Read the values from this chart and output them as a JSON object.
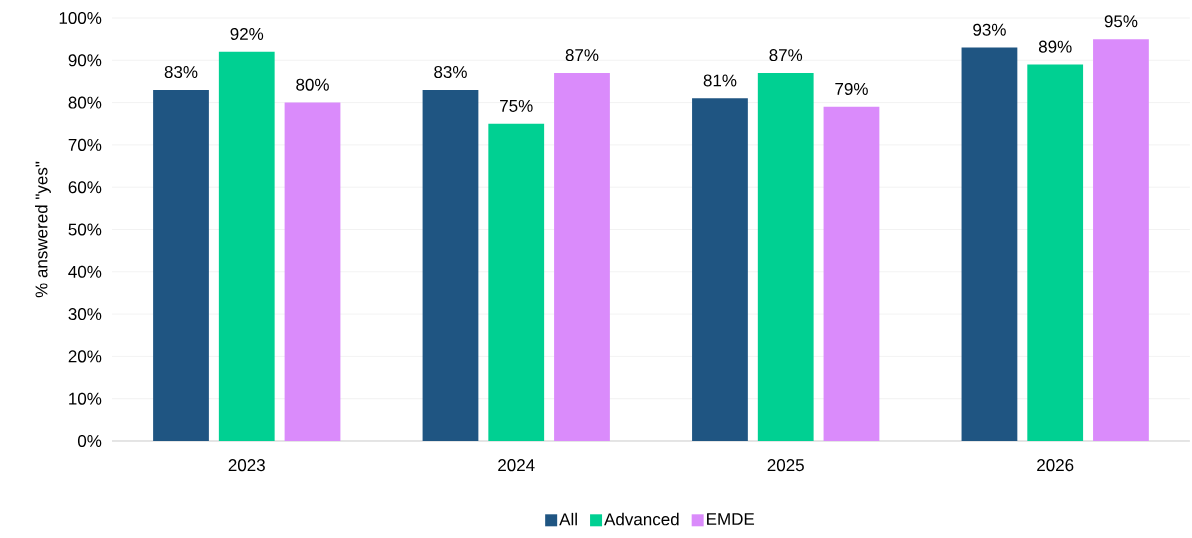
{
  "chart_data": {
    "type": "bar",
    "ylabel": "% answered \"yes\"",
    "categories": [
      "2023",
      "2024",
      "2025",
      "2026"
    ],
    "series": [
      {
        "name": "All",
        "color": "#1f5582",
        "values": [
          83,
          83,
          81,
          93
        ],
        "value_labels": [
          "83%",
          "83%",
          "81%",
          "93%"
        ]
      },
      {
        "name": "Advanced",
        "color": "#00d092",
        "values": [
          92,
          75,
          87,
          89
        ],
        "value_labels": [
          "92%",
          "75%",
          "87%",
          "89%"
        ]
      },
      {
        "name": "EMDE",
        "color": "#da8bfb",
        "values": [
          80,
          87,
          79,
          95
        ],
        "value_labels": [
          "80%",
          "87%",
          "79%",
          "95%"
        ]
      }
    ],
    "ylim": [
      0,
      100
    ],
    "yticks": [
      {
        "value": 0,
        "label": "0%"
      },
      {
        "value": 10,
        "label": "10%"
      },
      {
        "value": 20,
        "label": "20%"
      },
      {
        "value": 30,
        "label": "30%"
      },
      {
        "value": 40,
        "label": "40%"
      },
      {
        "value": 50,
        "label": "50%"
      },
      {
        "value": 60,
        "label": "60%"
      },
      {
        "value": 70,
        "label": "70%"
      },
      {
        "value": 80,
        "label": "80%"
      },
      {
        "value": 90,
        "label": "90%"
      },
      {
        "value": 100,
        "label": "100%"
      }
    ],
    "grid": "y",
    "legend": "bottom"
  }
}
